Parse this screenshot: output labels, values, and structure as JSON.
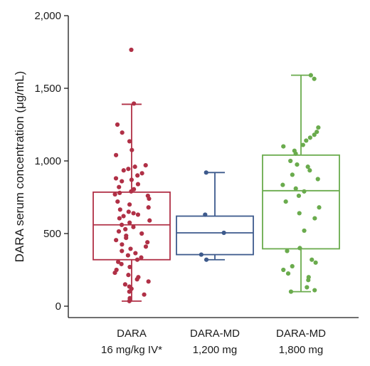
{
  "chart_data": {
    "type": "box",
    "ylabel": "DARA serum concentration (μg/mL)",
    "ylim": [
      0,
      2000
    ],
    "y_ticks": [
      {
        "value": 0,
        "label": "0"
      },
      {
        "value": 500,
        "label": "500"
      },
      {
        "value": 1000,
        "label": "1,000"
      },
      {
        "value": 1500,
        "label": "1,500"
      },
      {
        "value": 2000,
        "label": "2,000"
      }
    ],
    "grid": false,
    "groups": [
      {
        "label_line1": "DARA",
        "label_line2": "16 mg/kg IV*",
        "color": "#b03046",
        "q1": 320,
        "median": 560,
        "q3": 785,
        "whisker_low": 35,
        "whisker_high": 1390,
        "points": [
          1765,
          1395,
          1250,
          1195,
          1135,
          1075,
          1040,
          970,
          960,
          945,
          935,
          915,
          900,
          880,
          870,
          860,
          840,
          820,
          805,
          790,
          780,
          770,
          760,
          740,
          720,
          700,
          680,
          665,
          650,
          640,
          630,
          620,
          605,
          590,
          575,
          560,
          545,
          530,
          515,
          500,
          485,
          470,
          455,
          440,
          425,
          410,
          395,
          380,
          365,
          350,
          335,
          320,
          305,
          290,
          270,
          250,
          230,
          215,
          200,
          185,
          170,
          150,
          135,
          120,
          100,
          80,
          55,
          35
        ]
      },
      {
        "label_line1": "DARA-MD",
        "label_line2": "1,200 mg",
        "color": "#3d5a8c",
        "q1": 355,
        "median": 505,
        "q3": 620,
        "whisker_low": 320,
        "whisker_high": 920,
        "points": [
          920,
          630,
          505,
          355,
          320
        ]
      },
      {
        "label_line1": "DARA-MD",
        "label_line2": "1,800 mg",
        "color": "#6aab4d",
        "q1": 395,
        "median": 795,
        "q3": 1040,
        "whisker_low": 100,
        "whisker_high": 1590,
        "points": [
          1590,
          1565,
          1230,
          1200,
          1180,
          1160,
          1140,
          1110,
          1100,
          1070,
          1050,
          1000,
          975,
          960,
          935,
          905,
          875,
          835,
          810,
          790,
          760,
          720,
          680,
          640,
          605,
          520,
          400,
          380,
          320,
          300,
          275,
          250,
          225,
          200,
          180,
          130,
          110,
          100
        ]
      }
    ]
  }
}
